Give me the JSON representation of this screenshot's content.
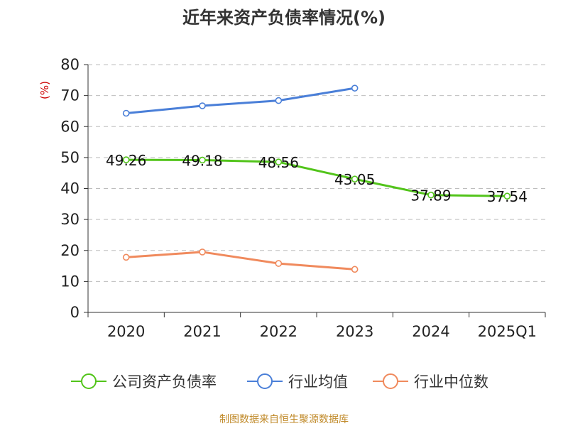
{
  "chart_data": {
    "type": "line",
    "title": "近年来资产负债率情况(%)",
    "ylabel": "(%)",
    "xlabel": "",
    "categories": [
      "2020",
      "2021",
      "2022",
      "2023",
      "2024",
      "2025Q1"
    ],
    "ylim": [
      0,
      80
    ],
    "yticks": [
      0,
      10,
      20,
      30,
      40,
      50,
      60,
      70,
      80
    ],
    "grid": true,
    "legend_position": "bottom",
    "series": [
      {
        "name": "公司资产负债率",
        "color": "#52c41a",
        "values": [
          49.26,
          49.18,
          48.56,
          43.05,
          37.89,
          37.54
        ],
        "labels": [
          "49.26",
          "49.18",
          "48.56",
          "43.05",
          "37.89",
          "37.54"
        ]
      },
      {
        "name": "行业均值",
        "color": "#4a7fd8",
        "values": [
          64.3,
          66.7,
          68.4,
          72.4,
          null,
          null
        ]
      },
      {
        "name": "行业中位数",
        "color": "#f08a5d",
        "values": [
          17.8,
          19.5,
          15.8,
          13.9,
          null,
          null
        ]
      }
    ],
    "source": "制图数据来自恒生聚源数据库"
  }
}
